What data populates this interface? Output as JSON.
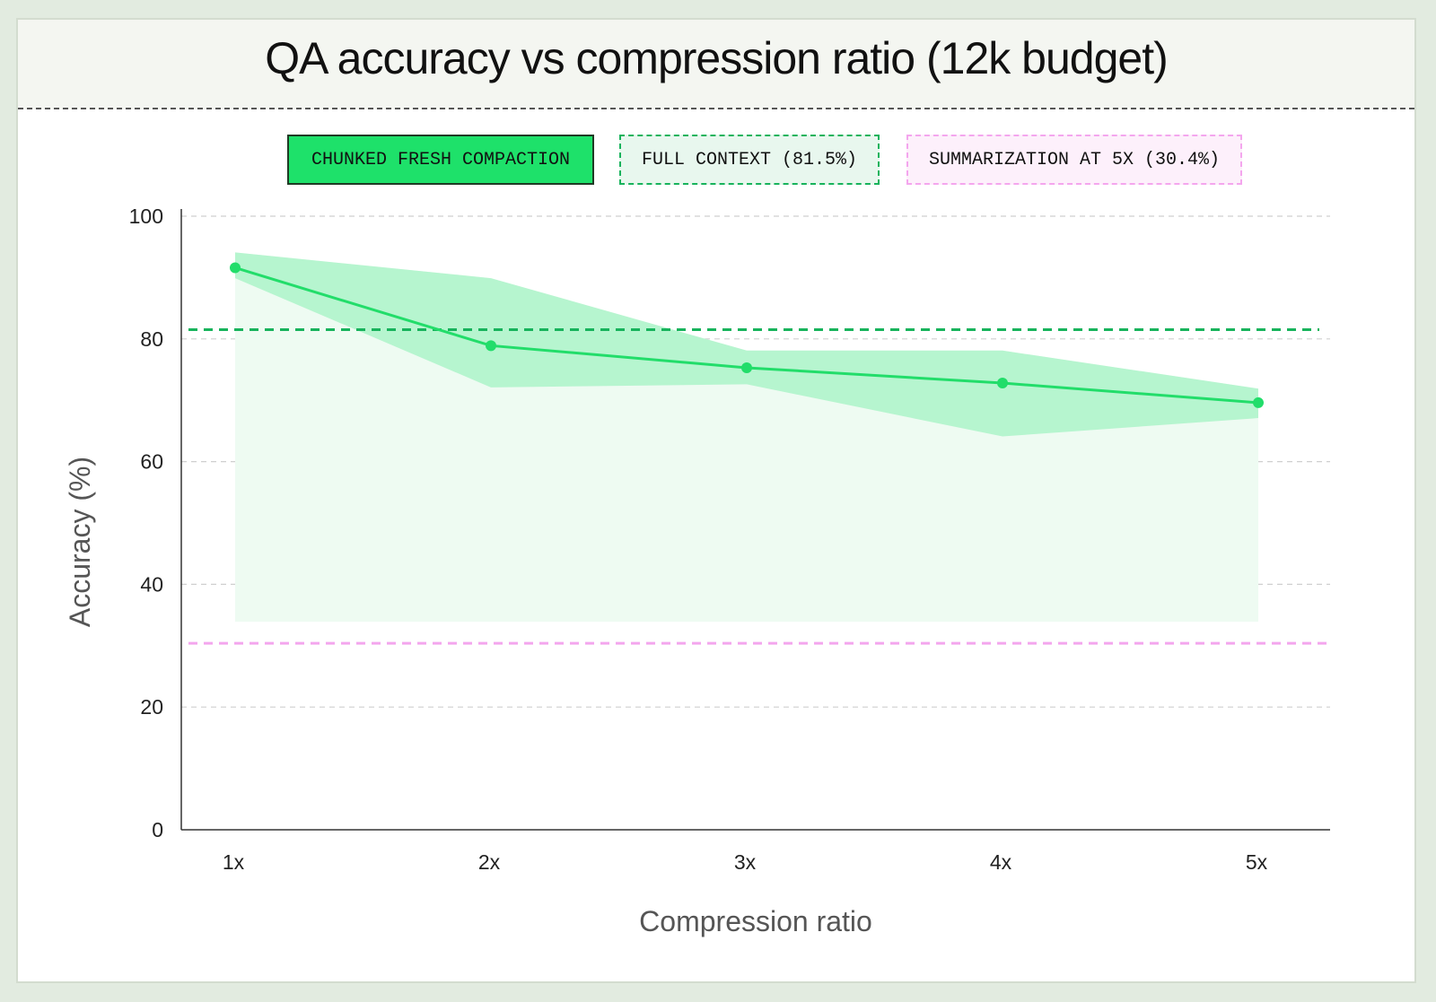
{
  "chart_data": {
    "type": "line",
    "title": "QA accuracy vs compression ratio (12k budget)",
    "xlabel": "Compression ratio",
    "ylabel": "Accuracy (%)",
    "categories": [
      "1x",
      "2x",
      "3x",
      "4x",
      "5x"
    ],
    "ylim": [
      0,
      100
    ],
    "yticks": [
      0,
      20,
      40,
      60,
      80,
      100
    ],
    "grid": true,
    "series": [
      {
        "name": "CHUNKED FRESH COMPACTION",
        "values": [
          91.6,
          78.9,
          75.3,
          72.8,
          69.6
        ],
        "band_upper": [
          94.1,
          89.9,
          78.1,
          78.1,
          71.9
        ],
        "band_lower": [
          89.9,
          72.1,
          72.6,
          64.1,
          67.1
        ],
        "color": "#22dd6a"
      }
    ],
    "reference_lines": [
      {
        "name": "FULL CONTEXT (81.5%)",
        "value": 81.5,
        "color": "#17b35c"
      },
      {
        "name": "SUMMARIZATION AT 5X (30.4%)",
        "value": 30.4,
        "color": "#f4a6ee"
      }
    ],
    "legend_placement": "top"
  },
  "legend": {
    "chunked": "CHUNKED FRESH COMPACTION",
    "full": "FULL CONTEXT (81.5%)",
    "summ": "SUMMARIZATION AT 5X (30.4%)"
  },
  "colors": {
    "background": "#e2ebe0",
    "line": "#22dd6a",
    "band": "#b6f5cf",
    "fill": "#eefbf2",
    "full_context": "#17b35c",
    "summarization": "#f4a6ee"
  }
}
